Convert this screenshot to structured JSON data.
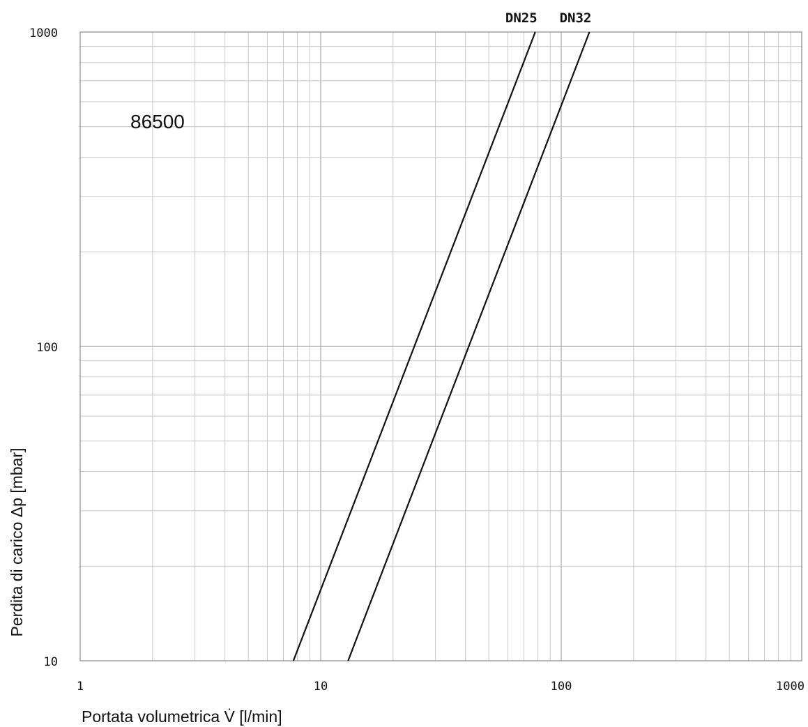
{
  "chart_data": {
    "type": "line",
    "xlabel": "Portata volumetrica V̇ [l/min]",
    "ylabel": "Perdita di carico Δp [mbar]",
    "x_scale": "log",
    "y_scale": "log",
    "xlim": [
      1,
      1000
    ],
    "ylim": [
      10,
      1000
    ],
    "x_ticks": [
      {
        "value": 1,
        "label": "1"
      },
      {
        "value": 10,
        "label": "10"
      },
      {
        "value": 100,
        "label": "100"
      },
      {
        "value": 1000,
        "label": "1000"
      }
    ],
    "y_ticks": [
      {
        "value": 10,
        "label": "10"
      },
      {
        "value": 100,
        "label": "100"
      },
      {
        "value": 1000,
        "label": "1000"
      }
    ],
    "grid": true,
    "annotation": "86500",
    "series": [
      {
        "name": "DN25",
        "x": [
          7.7,
          78
        ],
        "y": [
          10,
          1000
        ]
      },
      {
        "name": "DN32",
        "x": [
          13,
          131
        ],
        "y": [
          10,
          1000
        ]
      }
    ]
  }
}
